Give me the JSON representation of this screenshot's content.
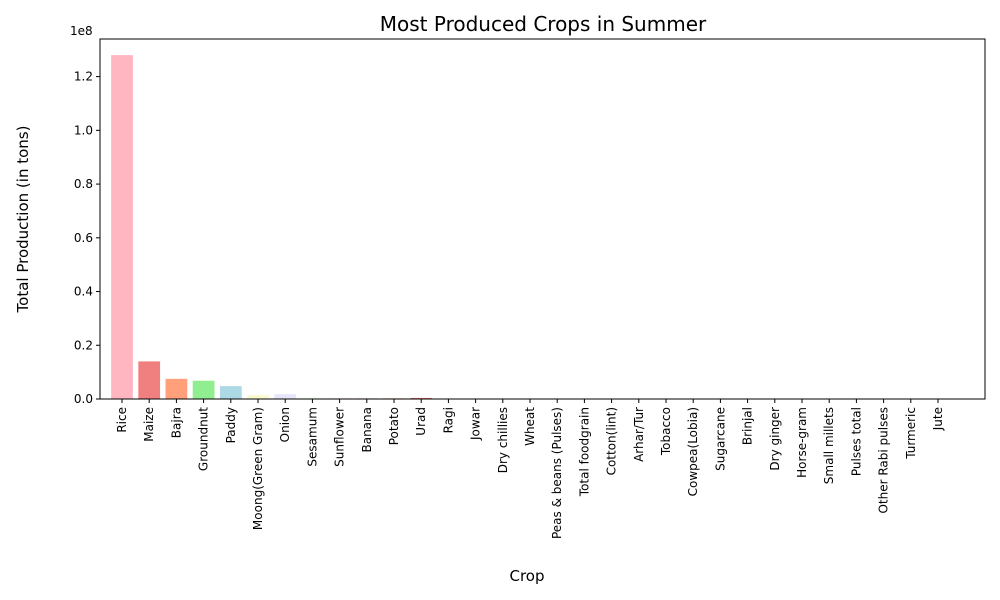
{
  "chart_data": {
    "type": "bar",
    "title": "Most Produced Crops in Summer",
    "xlabel": "Crop",
    "ylabel": "Total Production (in tons)",
    "y_offset_text": "1e8",
    "ylim": [
      0,
      134000000
    ],
    "yticks": [
      0,
      20000000,
      40000000,
      60000000,
      80000000,
      100000000,
      120000000
    ],
    "ytick_labels": [
      "0.0",
      "0.2",
      "0.4",
      "0.6",
      "0.8",
      "1.0",
      "1.2"
    ],
    "grid": false,
    "legend": "none",
    "categories": [
      "Rice",
      "Maize",
      "Bajra",
      "Groundnut",
      "Paddy",
      "Moong(Green Gram)",
      "Onion",
      "Sesamum",
      "Sunflower",
      "Banana",
      "Potato",
      "Urad",
      "Ragi",
      "Jowar",
      "Dry chillies",
      "Wheat",
      "Peas & beans (Pulses)",
      "Total foodgrain",
      "Cotton(lint)",
      "Arhar/Tur",
      "Tobacco",
      "Cowpea(Lobia)",
      "Sugarcane",
      "Brinjal",
      "Dry ginger",
      "Horse-gram",
      "Small millets",
      "Pulses total",
      "Other  Rabi pulses",
      "Turmeric",
      "Jute"
    ],
    "values": [
      128000000,
      14000000,
      7500000,
      6800000,
      4800000,
      1500000,
      1800000,
      500000,
      400000,
      300000,
      300000,
      400000,
      100000,
      80000,
      60000,
      50000,
      40000,
      30000,
      25000,
      20000,
      15000,
      12000,
      10000,
      8000,
      6000,
      5000,
      4000,
      3000,
      2000,
      1500,
      1000
    ],
    "colors": [
      "#ffb6c1",
      "#f08080",
      "#ffa07a",
      "#90ee90",
      "#add8e6",
      "#fafad2",
      "#e6e6fa",
      "#f0fff0",
      "#fff0f5",
      "#ffe4e1",
      "#ffdab9",
      "#fa8072",
      "#f5deb3",
      "#eee8aa",
      "#ffe4c4",
      "#fffacd",
      "#f0e68c",
      "#ffdead",
      "#fdf5e6",
      "#f5f5dc",
      "#fffaf0",
      "#faf0e6",
      "#fff5ee",
      "#f8f8ff",
      "#fffafa",
      "#f0f8ff",
      "#f5fffa",
      "#fffff0",
      "#fafafa",
      "#fdfdfd",
      "#fefefe"
    ]
  }
}
